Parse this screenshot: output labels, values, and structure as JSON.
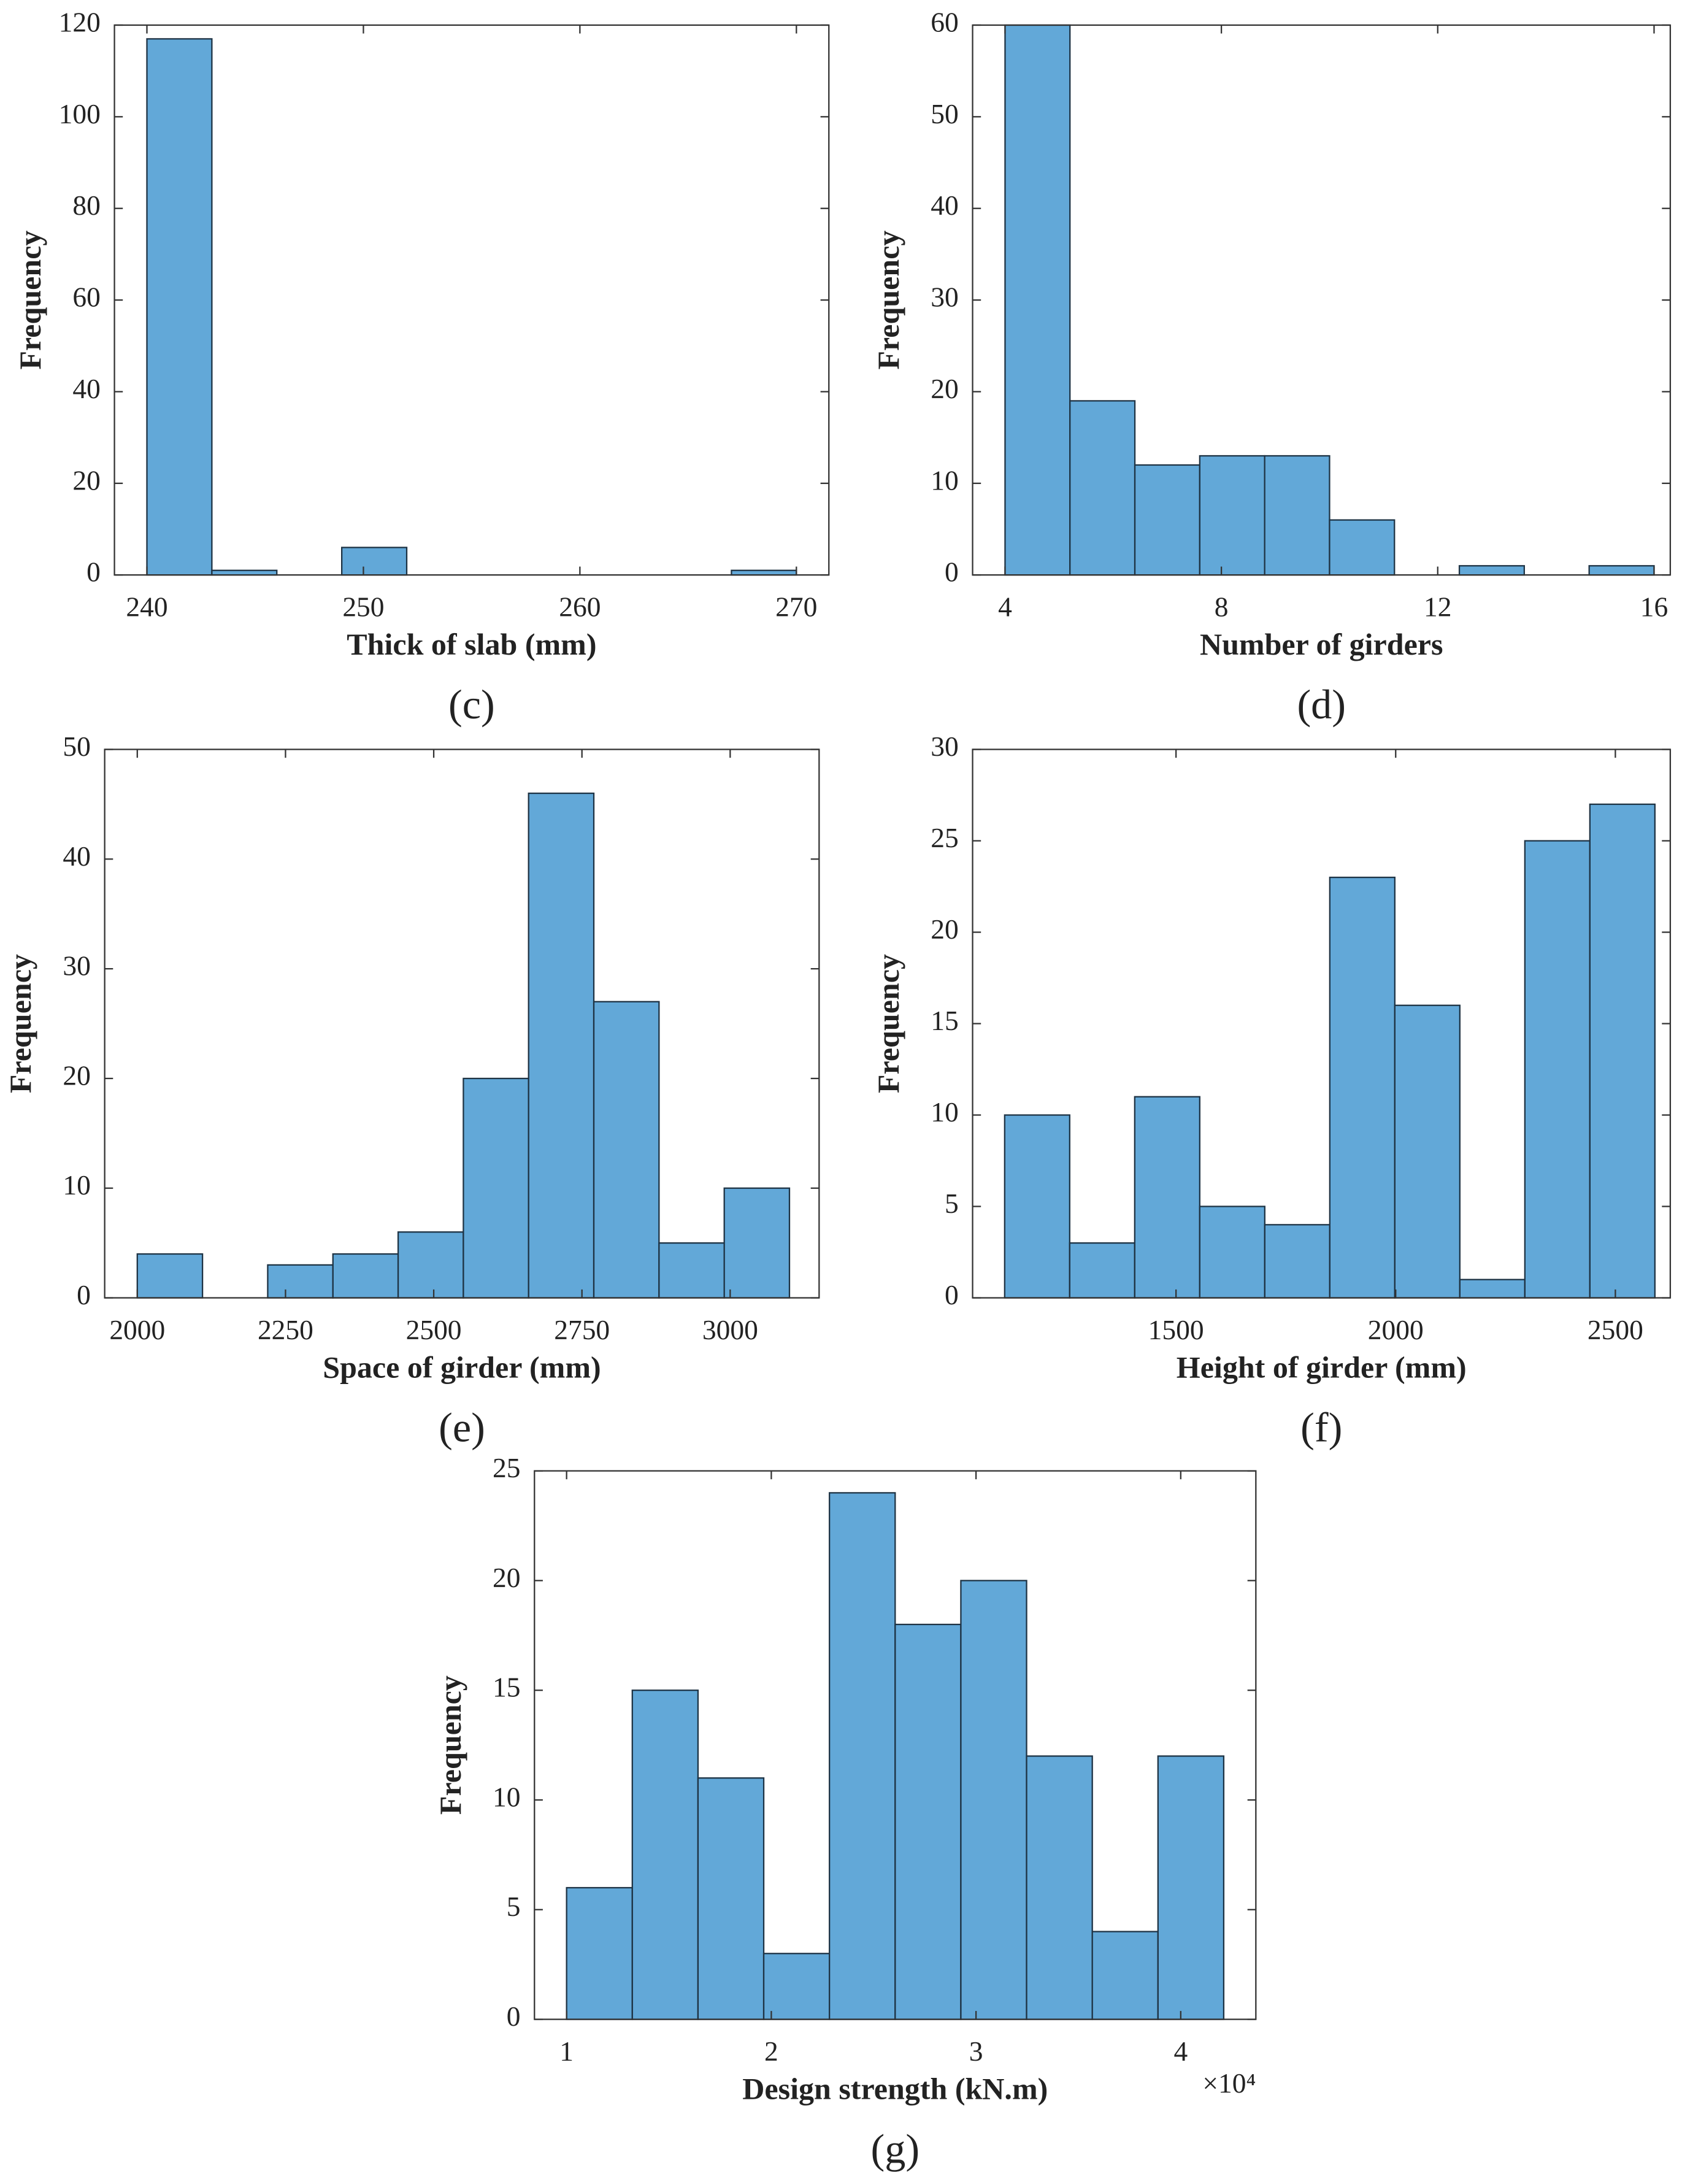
{
  "chart_data": [
    {
      "type": "histogram",
      "panel_label": "(c)",
      "xlabel": "Thick of slab (mm)",
      "ylabel": "Frequency",
      "color": "#62a8d8",
      "bins": [
        240,
        243,
        246,
        249,
        252,
        255,
        258,
        261,
        264,
        267,
        270
      ],
      "values": [
        117,
        1,
        0,
        6,
        0,
        0,
        0,
        0,
        0,
        1
      ],
      "xlim": [
        238.5,
        271.5
      ],
      "ylim": [
        0,
        120
      ],
      "xticks": [
        240,
        250,
        260,
        270
      ],
      "yticks": [
        0,
        20,
        40,
        60,
        80,
        100,
        120
      ]
    },
    {
      "type": "histogram",
      "panel_label": "(d)",
      "xlabel": "Number of girders",
      "ylabel": "Frequency",
      "color": "#62a8d8",
      "bins": [
        4,
        5.2,
        6.4,
        7.6,
        8.8,
        10,
        11.2,
        12.4,
        13.6,
        14.8,
        16
      ],
      "values": [
        60,
        19,
        12,
        13,
        13,
        6,
        0,
        1,
        0,
        1
      ],
      "xlim": [
        3.4,
        16.3
      ],
      "ylim": [
        0,
        60
      ],
      "xticks": [
        4,
        8,
        12,
        16
      ],
      "yticks": [
        0,
        10,
        20,
        30,
        40,
        50,
        60
      ]
    },
    {
      "type": "histogram",
      "panel_label": "(e)",
      "xlabel": "Space of girder (mm)",
      "ylabel": "Frequency",
      "color": "#62a8d8",
      "bins": [
        2000,
        2110,
        2220,
        2330,
        2440,
        2550,
        2660,
        2770,
        2880,
        2990,
        3100
      ],
      "values": [
        4,
        0,
        3,
        4,
        6,
        20,
        46,
        27,
        5,
        10
      ],
      "xlim": [
        1945,
        3150
      ],
      "ylim": [
        0,
        50
      ],
      "xticks": [
        2000,
        2250,
        2500,
        2750,
        3000
      ],
      "yticks": [
        0,
        10,
        20,
        30,
        40,
        50
      ]
    },
    {
      "type": "histogram",
      "panel_label": "(f)",
      "xlabel": "Height of girder (mm)",
      "ylabel": "Frequency",
      "color": "#62a8d8",
      "bins": [
        1110,
        1258,
        1406,
        1554,
        1702,
        1850,
        1998,
        2146,
        2294,
        2442,
        2590
      ],
      "values": [
        10,
        3,
        11,
        5,
        4,
        23,
        16,
        1,
        25,
        27
      ],
      "xlim": [
        1037,
        2625
      ],
      "ylim": [
        0,
        30
      ],
      "xticks": [
        1500,
        2000,
        2500
      ],
      "yticks": [
        0,
        5,
        10,
        15,
        20,
        25,
        30
      ]
    },
    {
      "type": "histogram",
      "panel_label": "(g)",
      "xlabel": "Design strength (kN.m)",
      "ylabel": "Frequency",
      "x_multiplier": "×10⁴",
      "color": "#62a8d8",
      "bins": [
        10000,
        13210,
        16420,
        19630,
        22840,
        26050,
        29260,
        32470,
        35680,
        38890,
        42100
      ],
      "values": [
        6,
        15,
        11,
        3,
        24,
        18,
        20,
        12,
        4,
        12
      ],
      "xlim": [
        8430,
        43670
      ],
      "ylim": [
        0,
        25
      ],
      "xticks": [
        {
          "value": 10000,
          "label": "1"
        },
        {
          "value": 20000,
          "label": "2"
        },
        {
          "value": 30000,
          "label": "3"
        },
        {
          "value": 40000,
          "label": "4"
        }
      ],
      "yticks": [
        0,
        5,
        10,
        15,
        20,
        25
      ]
    }
  ]
}
